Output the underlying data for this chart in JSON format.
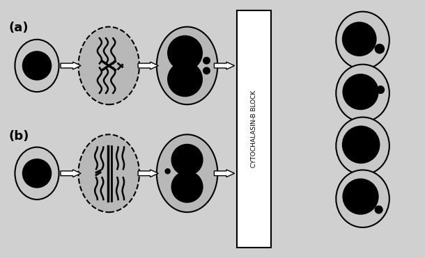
{
  "bg_color": "#c8c8c8",
  "cell_fill": "#c8c8c8",
  "nucleus_color": "#000000",
  "outline_color": "#000000",
  "arrow_color": "#ffffff",
  "cytob_box_color": "#ffffff",
  "text_color": "#000000",
  "label_a": "(a)",
  "label_b": "(b)",
  "cytob_text": "CYTOCHALASIN-B BLOCK",
  "fig_bg": "#d0d0d0"
}
